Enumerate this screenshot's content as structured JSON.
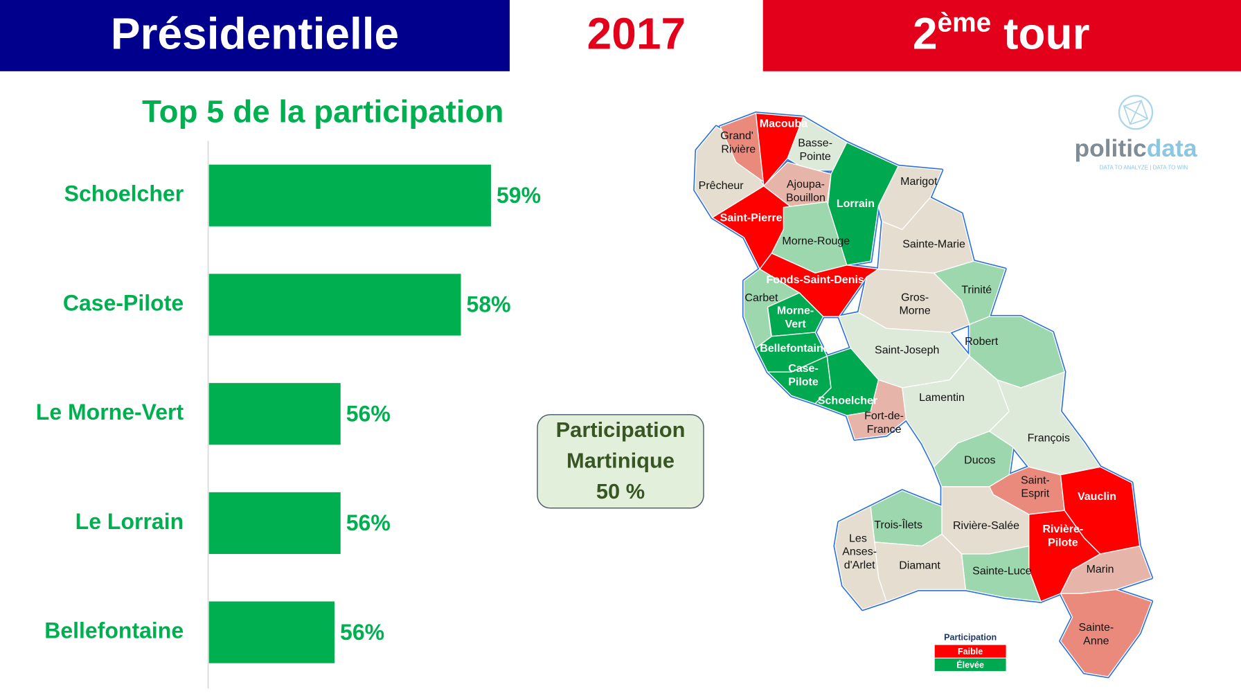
{
  "header": {
    "left": "Présidentielle",
    "center": "2017",
    "round_number": "2",
    "round_suffix": "ème",
    "round_text": " tour"
  },
  "chart_data": {
    "type": "bar",
    "orientation": "horizontal",
    "title": "Top 5 de la participation",
    "categories": [
      "Schoelcher",
      "Case-Pilote",
      "Le Morne-Vert",
      "Le Lorrain",
      "Bellefontaine"
    ],
    "values": [
      58.9,
      58.4,
      56.4,
      56.4,
      56.3
    ],
    "value_labels": [
      "59%",
      "58%",
      "56%",
      "56%",
      "56%"
    ],
    "xlim": [
      54.2,
      60
    ],
    "color": "#00b050"
  },
  "participation_box": {
    "lines": [
      "Participation",
      "Martinique",
      "50 %"
    ]
  },
  "logo": {
    "name_a": "politic",
    "name_b": "data",
    "tagline": "DATA TO ANALYZE | DATA TO WIN"
  },
  "map": {
    "communes": [
      {
        "name": "Prêcheur",
        "color": "#e4ddd0"
      },
      {
        "name": "Grand' Rivière",
        "color": "#ea8a7d"
      },
      {
        "name": "Macouba",
        "color": "#ff0000"
      },
      {
        "name": "Basse-Pointe",
        "color": "#dde9d9"
      },
      {
        "name": "Ajoupa-Bouillon",
        "color": "#e6b4a8"
      },
      {
        "name": "Lorrain",
        "color": "#00a84f"
      },
      {
        "name": "Marigot",
        "color": "#e4ddd0"
      },
      {
        "name": "Saint-Pierre",
        "color": "#ff0000"
      },
      {
        "name": "Morne-Rouge",
        "color": "#9dd7ae"
      },
      {
        "name": "Sainte-Marie",
        "color": "#e4ddd0"
      },
      {
        "name": "Fonds-Saint-Denis",
        "color": "#ff0000"
      },
      {
        "name": "Carbet",
        "color": "#9dd7ae"
      },
      {
        "name": "Morne-Vert",
        "color": "#00a84f"
      },
      {
        "name": "Gros-Morne",
        "color": "#e4ddd0"
      },
      {
        "name": "Trinité",
        "color": "#9dd7ae"
      },
      {
        "name": "Bellefontaine",
        "color": "#00a84f"
      },
      {
        "name": "Case-Pilote",
        "color": "#00a84f"
      },
      {
        "name": "Saint-Joseph",
        "color": "#dde9d9"
      },
      {
        "name": "Robert",
        "color": "#9dd7ae"
      },
      {
        "name": "Schoelcher",
        "color": "#00a84f"
      },
      {
        "name": "Fort-de-France",
        "color": "#e6b4a8"
      },
      {
        "name": "Lamentin",
        "color": "#dde9d9"
      },
      {
        "name": "François",
        "color": "#dde9d9"
      },
      {
        "name": "Ducos",
        "color": "#9dd7ae"
      },
      {
        "name": "Saint-Esprit",
        "color": "#ea8a7d"
      },
      {
        "name": "Vauclin",
        "color": "#ff0000"
      },
      {
        "name": "Rivière-Salée",
        "color": "#e4ddd0"
      },
      {
        "name": "Rivière-Pilote",
        "color": "#ff0000"
      },
      {
        "name": "Marin",
        "color": "#e6b4a8"
      },
      {
        "name": "Sainte-Anne",
        "color": "#ea8a7d"
      },
      {
        "name": "Sainte-Luce",
        "color": "#9dd7ae"
      },
      {
        "name": "Trois-Îlets",
        "color": "#9dd7ae"
      },
      {
        "name": "Diamant",
        "color": "#e4ddd0"
      },
      {
        "name": "Les Anses-d'Arlet",
        "color": "#e4ddd0"
      }
    ],
    "legend": {
      "title": "Participation",
      "items": [
        {
          "label": "Faible",
          "color": "#ff0000"
        },
        {
          "label": "Élevée",
          "color": "#00a84f"
        }
      ]
    }
  }
}
